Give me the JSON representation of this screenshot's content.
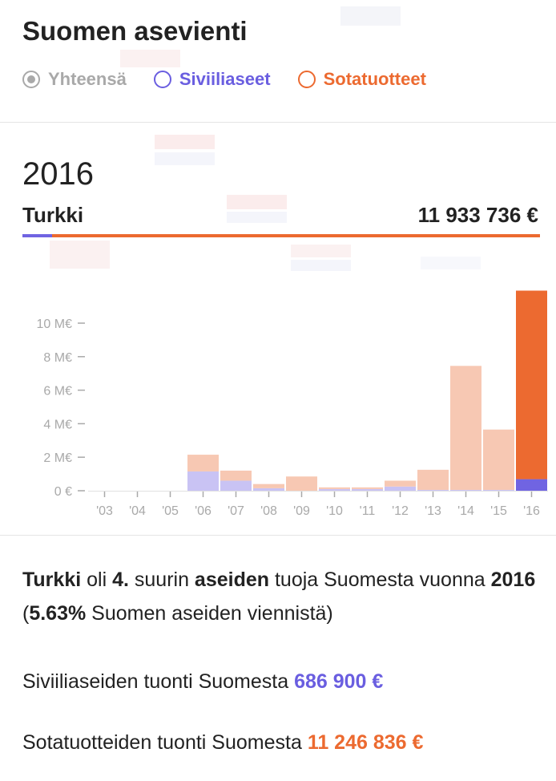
{
  "header": {
    "title": "Suomen asevienti",
    "radios": [
      {
        "label": "Yhteensä",
        "checked": true,
        "color": "#a9a9a9"
      },
      {
        "label": "Siviiliaseet",
        "checked": false,
        "color": "#6a5ee0"
      },
      {
        "label": "Sotatuotteet",
        "checked": false,
        "color": "#ec6a30"
      }
    ]
  },
  "summary": {
    "year": "2016",
    "country": "Turkki",
    "total": "11 933 736 €",
    "civilian_share": 0.0576
  },
  "colors": {
    "civilian": "#7064e2",
    "civilian_light": "#c9c3f4",
    "military": "#ec6a30",
    "military_light": "#f7c8b3",
    "axis": "#a9a9a9"
  },
  "chart_data": {
    "type": "bar",
    "stacked": true,
    "categories": [
      "'03",
      "'04",
      "'05",
      "'06",
      "'07",
      "'08",
      "'09",
      "'10",
      "'11",
      "'12",
      "'13",
      "'14",
      "'15",
      "'16"
    ],
    "series": [
      {
        "key": "civilian",
        "values": [
          0,
          0,
          0,
          1.15,
          0.6,
          0.15,
          0,
          0.1,
          0.1,
          0.25,
          0.05,
          0.05,
          0.05,
          0.69
        ]
      },
      {
        "key": "military",
        "values": [
          0,
          0,
          0,
          1.0,
          0.6,
          0.25,
          0.85,
          0.1,
          0.1,
          0.35,
          1.2,
          7.4,
          3.6,
          11.25
        ]
      }
    ],
    "highlight_index": 13,
    "yticks": [
      0,
      2,
      4,
      6,
      8,
      10
    ],
    "ytick_labels": [
      "0 €",
      "2 M€",
      "4 M€",
      "6 M€",
      "8 M€",
      "10 M€"
    ],
    "ylim": [
      0,
      12
    ],
    "grid": false
  },
  "text": {
    "s_country": "Turkki",
    "s_1": " oli ",
    "s_rank": "4.",
    "s_2": " suurin ",
    "s_aseiden": "aseiden",
    "s_3": " tuoja Suomesta vuonna ",
    "s_year": "2016",
    "s_4": " (",
    "s_pct": "5.63%",
    "s_5": " Suomen aseiden viennistä)",
    "civ_label": "Siviiliaseiden tuonti Suomesta ",
    "civ_value": "686 900 €",
    "mil_label": "Sotatuotteiden tuonti Suomesta ",
    "mil_value": "11 246 836 €"
  }
}
